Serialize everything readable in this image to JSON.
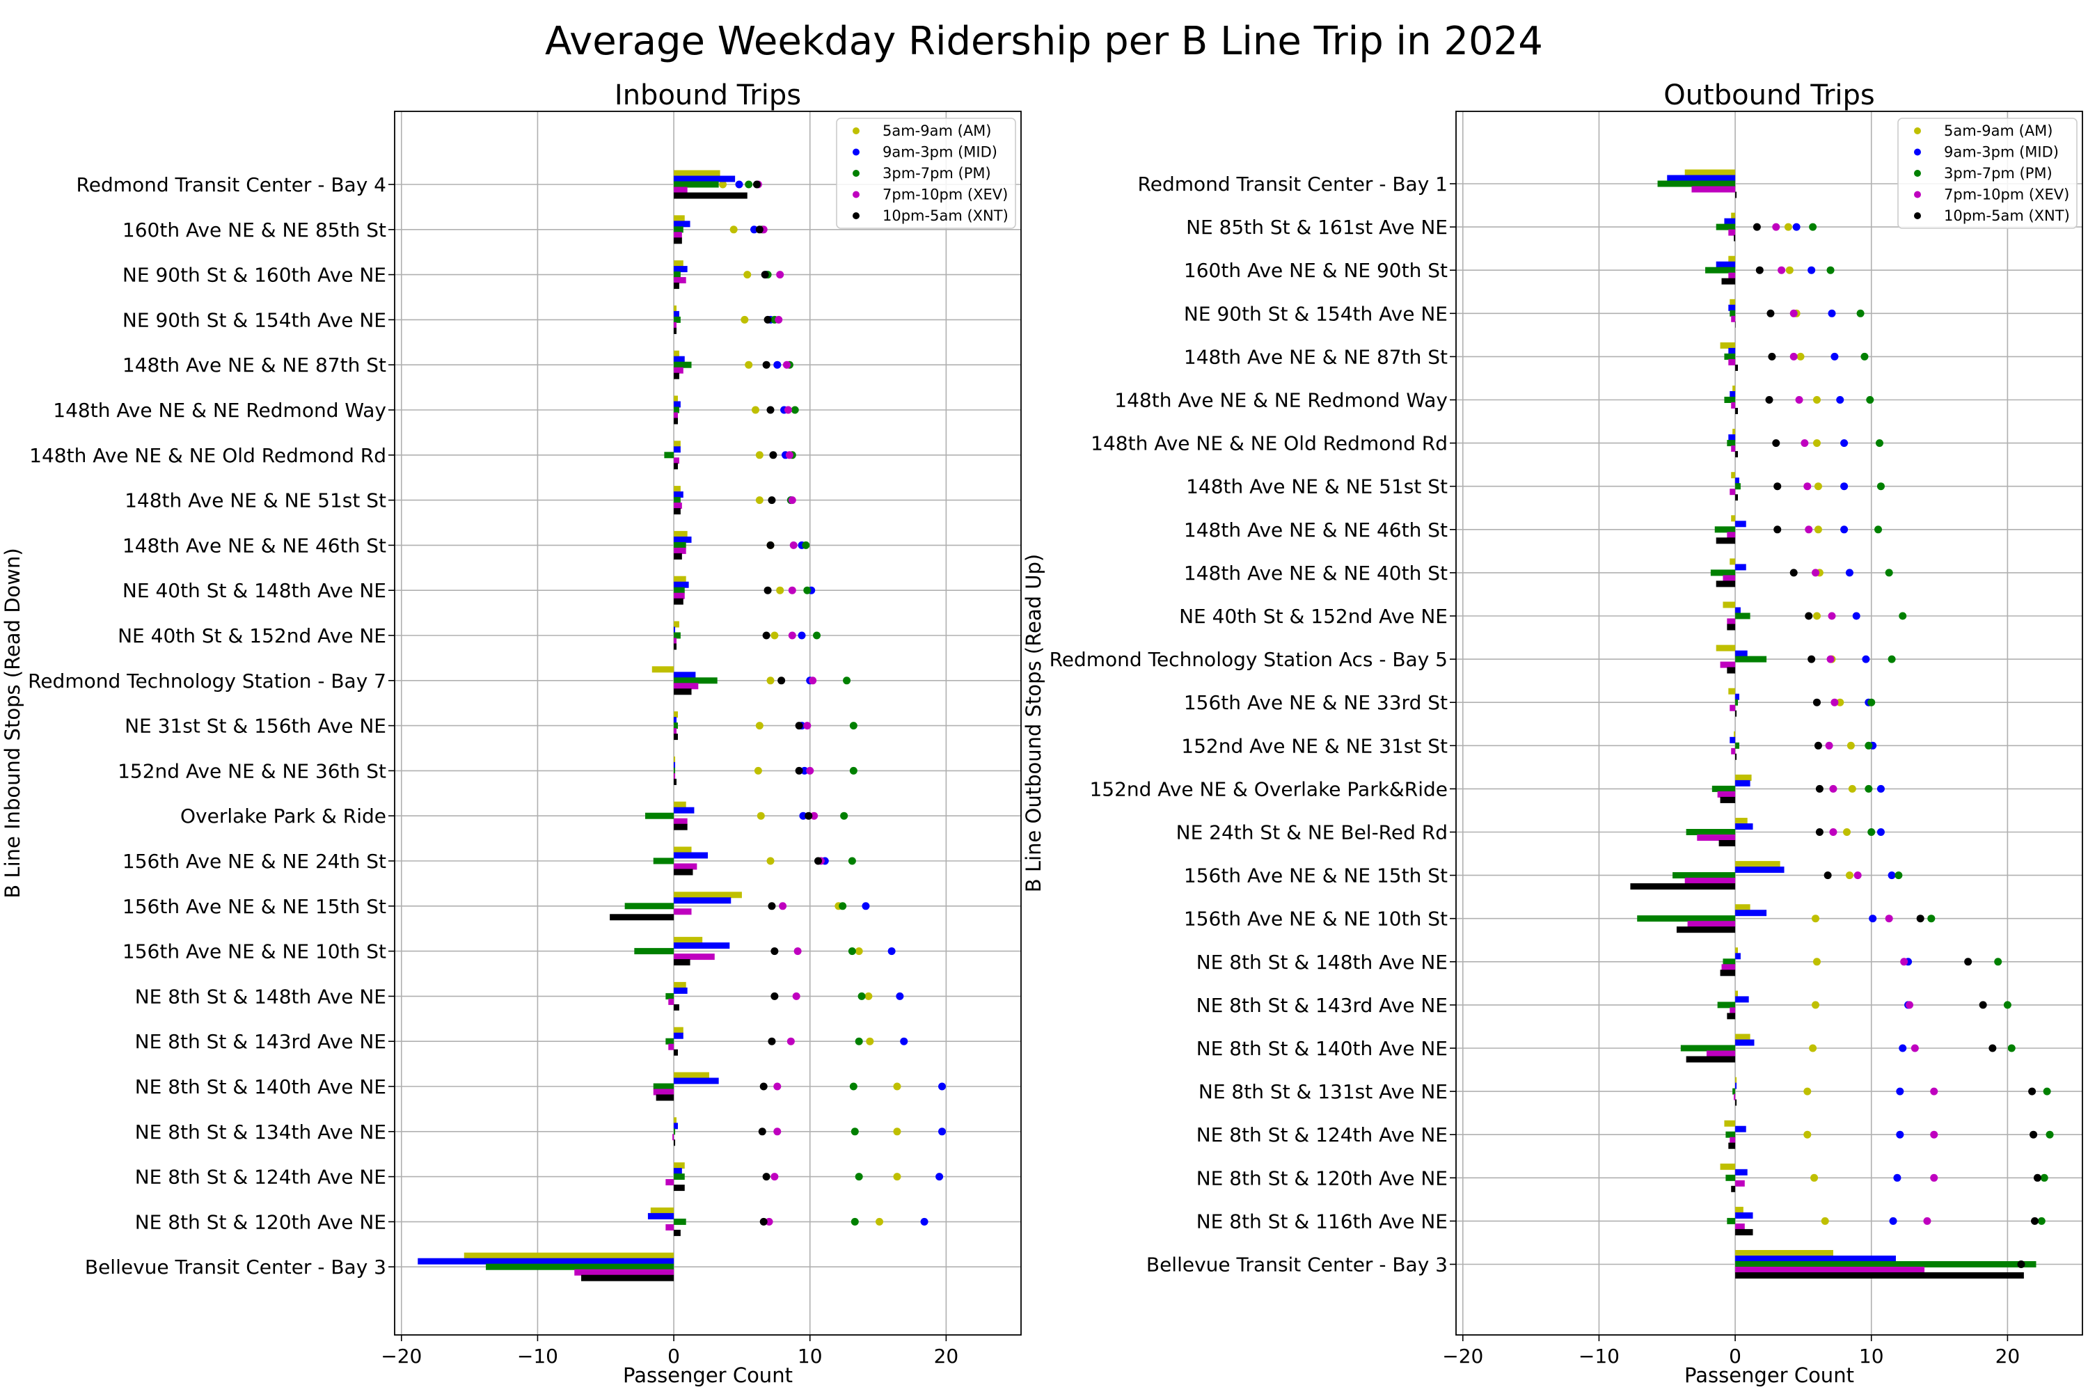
{
  "suptitle": "Average Weekday Ridership per B Line Trip in 2024",
  "legend_labels": [
    "5am-9am (AM)",
    "9am-3pm (MID)",
    "3pm-7pm (PM)",
    "7pm-10pm (XEV)",
    "10pm-5am (XNT)"
  ],
  "series_colors": [
    "#bfbf00",
    "#0000ff",
    "#008000",
    "#bf00bf",
    "#000000"
  ],
  "chart_data": [
    {
      "type": "bar+scatter",
      "title": "Inbound Trips",
      "xlabel": "Passenger Count",
      "ylabel": "B Line Inbound Stops (Read Down)",
      "xlim": [
        -20.5,
        25.5
      ],
      "xticks": [
        -20,
        -10,
        0,
        10,
        20
      ],
      "grid": true,
      "legend_position": "top-right",
      "categories": [
        "Redmond Transit Center - Bay 4",
        "160th Ave NE & NE 85th St",
        "NE 90th St & 160th Ave NE",
        "NE 90th St & 154th Ave NE",
        "148th Ave NE & NE 87th St",
        "148th Ave NE & NE Redmond Way",
        "148th Ave NE & NE Old Redmond Rd",
        "148th Ave NE & NE 51st St",
        "148th Ave NE & NE 46th St",
        "NE 40th St & 148th Ave NE",
        "NE 40th St & 152nd Ave NE",
        "Redmond Technology Station - Bay 7",
        "NE 31st St & 156th Ave NE",
        "152nd Ave NE & NE 36th St",
        "Overlake Park & Ride",
        "156th Ave NE & NE 24th St",
        "156th Ave NE & NE 15th St",
        "156th Ave NE & NE 10th St",
        "NE 8th St & 148th Ave NE",
        "NE 8th St & 143rd Ave NE",
        "NE 8th St & 140th Ave NE",
        "NE 8th St & 134th Ave NE",
        "NE 8th St & 124th Ave NE",
        "NE 8th St & 120th Ave NE",
        "Bellevue Transit Center - Bay 3"
      ],
      "series": [
        {
          "name": "5am-9am (AM)",
          "bars": [
            3.4,
            0.8,
            0.7,
            0.2,
            0.4,
            0.3,
            0.5,
            0.5,
            1.0,
            0.9,
            0.4,
            -1.6,
            0.3,
            0.1,
            0.9,
            1.3,
            5.0,
            2.1,
            0.9,
            0.7,
            2.6,
            0.2,
            0.8,
            -1.7,
            -15.4
          ],
          "points": [
            3.6,
            4.4,
            5.4,
            5.2,
            5.5,
            6.0,
            6.3,
            6.3,
            7.1,
            7.8,
            7.4,
            7.1,
            6.3,
            6.2,
            6.4,
            7.1,
            12.1,
            13.6,
            14.3,
            14.4,
            16.4,
            16.4,
            16.4,
            15.1,
            null
          ]
        },
        {
          "name": "9am-3pm (MID)",
          "bars": [
            4.5,
            1.2,
            1.0,
            0.4,
            0.8,
            0.5,
            0.5,
            0.7,
            1.3,
            1.1,
            0.1,
            1.6,
            0.2,
            0.1,
            1.5,
            2.5,
            4.2,
            4.1,
            1.0,
            0.7,
            3.3,
            0.3,
            0.6,
            -1.9,
            -18.8
          ],
          "points": [
            4.8,
            5.9,
            6.8,
            7.1,
            7.6,
            8.1,
            8.2,
            8.6,
            9.4,
            10.1,
            9.4,
            10.0,
            9.4,
            9.6,
            9.5,
            11.1,
            14.1,
            16.0,
            16.6,
            16.9,
            19.7,
            19.7,
            19.5,
            18.4,
            null
          ]
        },
        {
          "name": "3pm-7pm (PM)",
          "bars": [
            3.3,
            0.7,
            0.5,
            0.5,
            1.3,
            0.4,
            -0.7,
            0.5,
            0.9,
            0.8,
            0.5,
            3.2,
            0.3,
            0.1,
            -2.1,
            -1.5,
            -3.6,
            -2.9,
            -0.6,
            -0.6,
            -1.5,
            0.1,
            0.8,
            0.9,
            -13.8
          ],
          "points": [
            5.5,
            6.5,
            6.9,
            7.4,
            8.5,
            8.9,
            8.7,
            8.6,
            9.7,
            9.8,
            10.5,
            12.7,
            13.2,
            13.2,
            12.5,
            13.1,
            12.4,
            13.1,
            13.8,
            13.6,
            13.2,
            13.3,
            13.6,
            13.3,
            null
          ]
        },
        {
          "name": "7pm-10pm (XEV)",
          "bars": [
            1.0,
            0.6,
            0.9,
            0.2,
            0.7,
            0.3,
            0.4,
            0.6,
            0.9,
            0.8,
            0.2,
            1.8,
            0.2,
            0.1,
            1.0,
            1.7,
            1.3,
            3.0,
            -0.4,
            -0.4,
            -1.5,
            -0.1,
            -0.6,
            -0.6,
            -7.3
          ],
          "points": [
            6.2,
            6.6,
            7.8,
            7.7,
            8.3,
            8.4,
            8.5,
            8.7,
            8.8,
            8.7,
            8.7,
            10.2,
            9.8,
            10.0,
            10.3,
            10.8,
            8.0,
            9.1,
            9.0,
            8.6,
            7.6,
            7.6,
            7.4,
            7.0,
            null
          ]
        },
        {
          "name": "10pm-5am (XNT)",
          "bars": [
            5.4,
            0.6,
            0.4,
            0.2,
            0.4,
            0.3,
            0.3,
            0.5,
            0.6,
            0.7,
            0.2,
            1.3,
            0.3,
            0.2,
            1.0,
            1.4,
            -4.7,
            1.2,
            0.4,
            0.3,
            -1.3,
            0.1,
            0.8,
            0.5,
            -6.8
          ],
          "points": [
            6.1,
            6.3,
            6.7,
            6.9,
            6.8,
            7.1,
            7.3,
            7.2,
            7.1,
            6.9,
            6.8,
            7.9,
            9.2,
            9.2,
            9.9,
            10.6,
            7.2,
            7.4,
            7.4,
            7.2,
            6.6,
            6.5,
            6.8,
            6.6,
            null
          ]
        }
      ]
    },
    {
      "type": "bar+scatter",
      "title": "Outbound Trips",
      "xlabel": "Passenger Count",
      "ylabel": "B Line Outbound Stops (Read Up)",
      "xlim": [
        -20.5,
        25.5
      ],
      "xticks": [
        -20,
        -10,
        0,
        10,
        20
      ],
      "grid": true,
      "legend_position": "top-right",
      "categories": [
        "Redmond Transit Center - Bay 1",
        "NE 85th St & 161st Ave NE",
        "160th Ave NE & NE 90th St",
        "NE 90th St & 154th Ave NE",
        "148th Ave NE & NE 87th St",
        "148th Ave NE & NE Redmond Way",
        "148th Ave NE & NE Old Redmond Rd",
        "148th Ave NE & NE 51st St",
        "148th Ave NE & NE 46th St",
        "148th Ave NE & NE 40th St",
        "NE 40th St & 152nd Ave NE",
        "Redmond Technology Station Acs - Bay 5",
        "156th Ave NE & NE 33rd St",
        "152nd Ave NE & NE 31st St",
        "152nd Ave NE & Overlake Park&Ride",
        "NE 24th St & NE Bel-Red Rd",
        "156th Ave NE & NE 15th St",
        "156th Ave NE & NE 10th St",
        "NE 8th St & 148th Ave NE",
        "NE 8th St & 143rd Ave NE",
        "NE 8th St & 140th Ave NE",
        "NE 8th St & 131st Ave NE",
        "NE 8th St & 124th Ave NE",
        "NE 8th St & 120th Ave NE",
        "NE 8th St & 116th Ave NE",
        "Bellevue Transit Center - Bay 3"
      ],
      "series": [
        {
          "name": "5am-9am (AM)",
          "bars": [
            -3.7,
            -0.3,
            -0.5,
            -0.4,
            -1.1,
            -0.2,
            -0.2,
            -0.3,
            -0.3,
            -0.4,
            -0.9,
            -1.4,
            -0.5,
            -0.1,
            1.2,
            0.9,
            3.3,
            1.1,
            0.2,
            0.2,
            1.1,
            0.1,
            -0.8,
            -1.1,
            0.6,
            7.2
          ],
          "points": [
            null,
            3.9,
            4.0,
            4.5,
            4.8,
            6.0,
            6.0,
            6.1,
            6.1,
            6.2,
            6.0,
            7.1,
            7.7,
            8.5,
            8.6,
            8.2,
            8.4,
            5.9,
            6.0,
            5.9,
            5.7,
            5.3,
            5.3,
            5.8,
            6.6,
            null
          ]
        },
        {
          "name": "9am-3pm (MID)",
          "bars": [
            -5.0,
            -0.8,
            -1.4,
            -0.5,
            -0.5,
            -0.4,
            -0.5,
            0.3,
            0.8,
            0.8,
            0.4,
            0.9,
            0.3,
            -0.4,
            1.1,
            1.3,
            3.6,
            2.3,
            0.4,
            1.0,
            1.4,
            0.1,
            0.8,
            0.9,
            1.3,
            11.8
          ],
          "points": [
            null,
            4.5,
            5.6,
            7.1,
            7.3,
            7.7,
            8.0,
            8.0,
            8.0,
            8.4,
            8.9,
            9.6,
            9.8,
            10.1,
            10.7,
            10.7,
            11.5,
            10.1,
            12.7,
            12.7,
            12.3,
            12.1,
            12.1,
            11.9,
            11.6,
            null
          ]
        },
        {
          "name": "3pm-7pm (PM)",
          "bars": [
            -5.7,
            -1.4,
            -2.2,
            -0.4,
            -0.8,
            -0.8,
            -0.6,
            0.4,
            -1.5,
            -1.8,
            1.1,
            2.3,
            0.2,
            0.3,
            -1.7,
            -3.6,
            -4.6,
            -7.2,
            -0.9,
            -1.3,
            -4.0,
            -0.2,
            -0.7,
            -0.7,
            -0.6,
            22.1
          ],
          "points": [
            null,
            5.7,
            7.0,
            9.2,
            9.5,
            9.9,
            10.6,
            10.7,
            10.5,
            11.3,
            12.3,
            11.5,
            10.0,
            9.8,
            9.8,
            10.0,
            12.0,
            14.4,
            19.3,
            20.0,
            20.3,
            22.9,
            23.1,
            22.7,
            22.5,
            null
          ]
        },
        {
          "name": "7pm-10pm (XEV)",
          "bars": [
            -3.2,
            -0.5,
            -0.5,
            -0.3,
            -0.5,
            -0.3,
            -0.3,
            -0.4,
            -0.6,
            -0.9,
            -0.6,
            -1.1,
            -0.4,
            -0.3,
            -1.3,
            -2.8,
            -3.7,
            -3.5,
            -1.0,
            -0.4,
            -2.1,
            -0.1,
            -0.4,
            0.7,
            0.7,
            13.9
          ],
          "points": [
            null,
            3.0,
            3.4,
            4.3,
            4.3,
            4.7,
            5.1,
            5.3,
            5.4,
            5.9,
            7.1,
            7.0,
            7.3,
            6.9,
            7.2,
            7.2,
            9.0,
            11.3,
            12.4,
            12.8,
            13.2,
            14.6,
            14.6,
            14.6,
            14.1,
            null
          ]
        },
        {
          "name": "10pm-5am (XNT)",
          "bars": [
            0.1,
            -0.1,
            -1.0,
            0.0,
            0.2,
            0.2,
            0.2,
            0.2,
            -1.4,
            -1.4,
            -0.6,
            -0.6,
            0.1,
            0.1,
            -1.1,
            -1.2,
            -7.7,
            -4.3,
            -1.1,
            -0.6,
            -3.6,
            0.1,
            -0.5,
            -0.3,
            1.3,
            21.2
          ],
          "points": [
            null,
            1.6,
            1.8,
            2.6,
            2.7,
            2.5,
            3.0,
            3.1,
            3.1,
            4.3,
            5.4,
            5.6,
            6.0,
            6.1,
            6.2,
            6.2,
            6.8,
            13.6,
            17.1,
            18.2,
            18.9,
            21.8,
            21.9,
            22.2,
            22.0,
            21.0
          ]
        }
      ]
    }
  ]
}
